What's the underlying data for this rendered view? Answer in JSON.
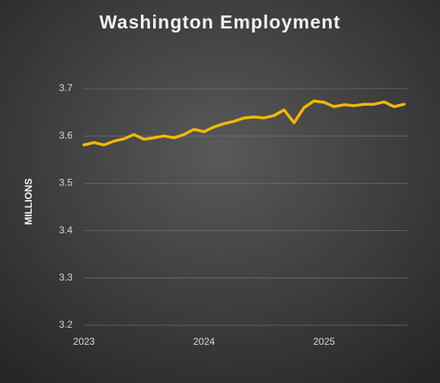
{
  "chart_data": {
    "type": "line",
    "title": "Washington Employment",
    "y_label": "MILLIONS",
    "categories": [
      "2023",
      null,
      null,
      null,
      null,
      null,
      null,
      null,
      null,
      null,
      null,
      null,
      "2024",
      null,
      null,
      null,
      null,
      null,
      null,
      null,
      null,
      null,
      null,
      null,
      "2025",
      null,
      null,
      null,
      null,
      null,
      null,
      null,
      null
    ],
    "series": [
      {
        "name": "Washington Employment",
        "color": "#f5b800",
        "values": [
          3.581,
          3.586,
          3.581,
          3.589,
          3.594,
          3.603,
          3.593,
          3.596,
          3.6,
          3.596,
          3.603,
          3.614,
          3.609,
          3.619,
          3.626,
          3.631,
          3.638,
          3.64,
          3.638,
          3.643,
          3.655,
          3.628,
          3.66,
          3.674,
          3.671,
          3.662,
          3.666,
          3.664,
          3.667,
          3.667,
          3.672,
          3.662,
          3.667
        ]
      }
    ],
    "ylim": [
      3.2,
      3.7
    ],
    "yticks": [
      3.2,
      3.3,
      3.4,
      3.5,
      3.6,
      3.7
    ],
    "grid": true
  }
}
